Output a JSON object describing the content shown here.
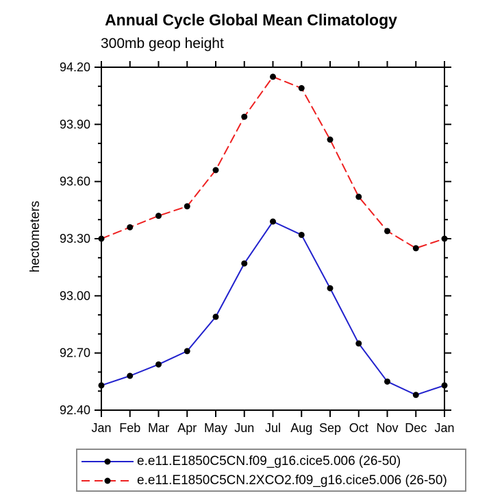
{
  "title": "Annual Cycle Global Mean Climatology",
  "subtitle": "300mb geop height",
  "ylabel": "hectometers",
  "colors": {
    "series_blue": "#2121cd",
    "series_red": "#ee2020",
    "marker": "#000000",
    "axis": "#000000",
    "legend_border": "#8a8a8a"
  },
  "chart_data": {
    "type": "line",
    "title": "Annual Cycle Global Mean Climatology",
    "subtitle": "300mb geop height",
    "xlabel": "",
    "ylabel": "hectometers",
    "categories": [
      "Jan",
      "Feb",
      "Mar",
      "Apr",
      "May",
      "Jun",
      "Jul",
      "Aug",
      "Sep",
      "Oct",
      "Nov",
      "Dec",
      "Jan"
    ],
    "series": [
      {
        "name": "e.e11.E1850C5CN.f09_g16.cice5.006 (26-50)",
        "color": "#2121cd",
        "line_style": "solid",
        "marker": "circle",
        "marker_color": "#000000",
        "values": [
          92.53,
          92.58,
          92.64,
          92.71,
          92.89,
          93.17,
          93.39,
          93.32,
          93.04,
          92.75,
          92.55,
          92.48,
          92.53
        ]
      },
      {
        "name": "e.e11.E1850C5CN.2XCO2.f09_g16.cice5.006 (26-50)",
        "color": "#ee2020",
        "line_style": "dashed",
        "marker": "circle",
        "marker_color": "#000000",
        "values": [
          93.3,
          93.36,
          93.42,
          93.47,
          93.66,
          93.94,
          94.15,
          94.09,
          93.82,
          93.52,
          93.34,
          93.25,
          93.3
        ]
      }
    ],
    "ylim": [
      92.4,
      94.2
    ],
    "y_major_step": 0.3,
    "y_minor_step": 0.1,
    "y_tick_labels": [
      "92.40",
      "92.70",
      "93.00",
      "93.30",
      "93.60",
      "93.90",
      "94.20"
    ],
    "grid": false,
    "legend_position": "bottom"
  }
}
